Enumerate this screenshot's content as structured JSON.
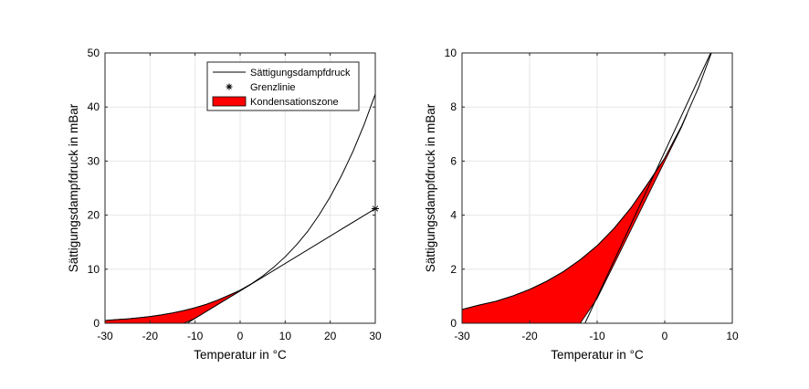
{
  "chart_data": [
    {
      "type": "line",
      "panel": "left",
      "xlabel": "Temperatur in °C",
      "ylabel": "Sättigungsdampfdruck in mBar",
      "xlim": [
        -30,
        30
      ],
      "ylim": [
        0,
        50
      ],
      "xticks": [
        -30,
        -20,
        -10,
        0,
        10,
        20,
        30
      ],
      "yticks": [
        0,
        10,
        20,
        30,
        40,
        50
      ],
      "grid": true,
      "legend_position": "top-right",
      "series": [
        {
          "name": "Sättigungsdampfdruck",
          "style": "black line",
          "x": [
            -30,
            -27.5,
            -25,
            -22.5,
            -20,
            -17.5,
            -15,
            -12.5,
            -10,
            -7.5,
            -5,
            -2.5,
            0,
            2.5,
            5,
            7.5,
            10,
            12.5,
            15,
            17.5,
            20,
            22.5,
            25,
            27.5,
            30
          ],
          "y": [
            0.51,
            0.67,
            0.81,
            1.01,
            1.25,
            1.55,
            1.91,
            2.35,
            2.87,
            3.51,
            4.27,
            5.17,
            6.11,
            7.3,
            8.72,
            10.4,
            12.3,
            14.5,
            17.0,
            20.0,
            23.4,
            27.3,
            31.7,
            36.7,
            42.4
          ]
        },
        {
          "name": "Grenzlinie",
          "style": "black line, asterisk marker at end",
          "x": [
            -11.8,
            30
          ],
          "y": [
            0,
            21.2
          ],
          "marker_point": [
            30,
            21.2
          ]
        },
        {
          "name": "Kondensationszone",
          "style": "red filled area",
          "fill_color": "#ff0000",
          "x": [
            -30,
            -27.5,
            -25,
            -22.5,
            -20,
            -17.5,
            -15,
            -12.5,
            -10,
            -7.5,
            -5,
            -2.5,
            0,
            2.5,
            3.3
          ],
          "y_upper": [
            0.51,
            0.67,
            0.81,
            1.01,
            1.25,
            1.55,
            1.91,
            2.35,
            2.87,
            3.51,
            4.27,
            5.17,
            6.11,
            7.3,
            7.73
          ],
          "y_lower": [
            0,
            0,
            0,
            0,
            0,
            0,
            0,
            0,
            0.92,
            2.18,
            3.45,
            4.72,
            5.99,
            7.26,
            7.73
          ]
        }
      ],
      "legend": [
        {
          "label": "Sättigungsdampfdruck",
          "symbol": "line"
        },
        {
          "label": "Grenzlinie",
          "symbol": "asterisk"
        },
        {
          "label": "Kondensationszone",
          "symbol": "red-patch"
        }
      ]
    },
    {
      "type": "line",
      "panel": "right",
      "xlabel": "Temperatur in °C",
      "ylabel": "Sättigungsdampfdruck in mBar",
      "xlim": [
        -30,
        10
      ],
      "ylim": [
        0,
        10
      ],
      "xticks": [
        -30,
        -20,
        -10,
        0,
        10
      ],
      "yticks": [
        0,
        2,
        4,
        6,
        8,
        10
      ],
      "grid": true,
      "series": [
        {
          "name": "Sättigungsdampfdruck",
          "style": "black line",
          "x": [
            -30,
            -27.5,
            -25,
            -22.5,
            -20,
            -17.5,
            -15,
            -12.5,
            -10,
            -7.5,
            -5,
            -2.5,
            0,
            2.5,
            5,
            7.5,
            8
          ],
          "y": [
            0.51,
            0.67,
            0.81,
            1.01,
            1.25,
            1.55,
            1.91,
            2.35,
            2.87,
            3.51,
            4.27,
            5.17,
            6.11,
            7.3,
            8.72,
            10.4,
            10.8
          ]
        },
        {
          "name": "Grenzlinie",
          "style": "black line",
          "x": [
            -11.8,
            6.8
          ],
          "y": [
            0,
            10
          ]
        },
        {
          "name": "Kondensationszone",
          "style": "red filled area",
          "fill_color": "#ff0000",
          "x": [
            -30,
            -27.5,
            -25,
            -22.5,
            -20,
            -17.5,
            -15,
            -12.5,
            -10,
            -7.5,
            -5,
            -2.5,
            0,
            2.5,
            3.3
          ],
          "y_upper": [
            0.51,
            0.67,
            0.81,
            1.01,
            1.25,
            1.55,
            1.91,
            2.35,
            2.87,
            3.51,
            4.27,
            5.17,
            6.11,
            7.3,
            7.73
          ],
          "y_lower": [
            0,
            0,
            0,
            0,
            0,
            0,
            0,
            0,
            0.92,
            2.18,
            3.45,
            4.72,
            5.99,
            7.26,
            7.73
          ]
        }
      ]
    }
  ],
  "colors": {
    "line": "#000000",
    "fill": "#ff0000",
    "grid": "#e6e6e6",
    "axes_bg": "#ffffff",
    "figure_bg": "#ffffff"
  }
}
